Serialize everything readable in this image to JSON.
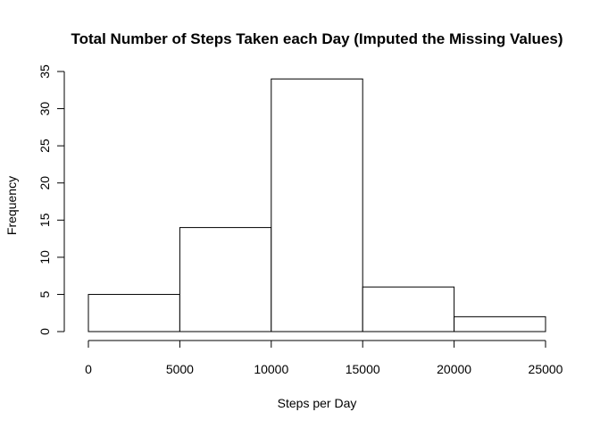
{
  "chart_data": {
    "type": "bar",
    "title": "Total Number of Steps Taken each Day (Imputed the Missing Values)",
    "xlabel": "Steps per Day",
    "ylabel": "Frequency",
    "bins": [
      {
        "start": 0,
        "end": 5000,
        "value": 5
      },
      {
        "start": 5000,
        "end": 10000,
        "value": 14
      },
      {
        "start": 10000,
        "end": 15000,
        "value": 34
      },
      {
        "start": 15000,
        "end": 20000,
        "value": 6
      },
      {
        "start": 20000,
        "end": 25000,
        "value": 2
      }
    ],
    "xlim": [
      0,
      25000
    ],
    "ylim": [
      0,
      35
    ],
    "xticks": [
      "0",
      "5000",
      "10000",
      "15000",
      "20000",
      "25000"
    ],
    "yticks": [
      "0",
      "5",
      "10",
      "15",
      "20",
      "25",
      "30",
      "35"
    ],
    "grid": false,
    "bar_fill": "#ffffff",
    "bar_stroke": "#000000"
  }
}
